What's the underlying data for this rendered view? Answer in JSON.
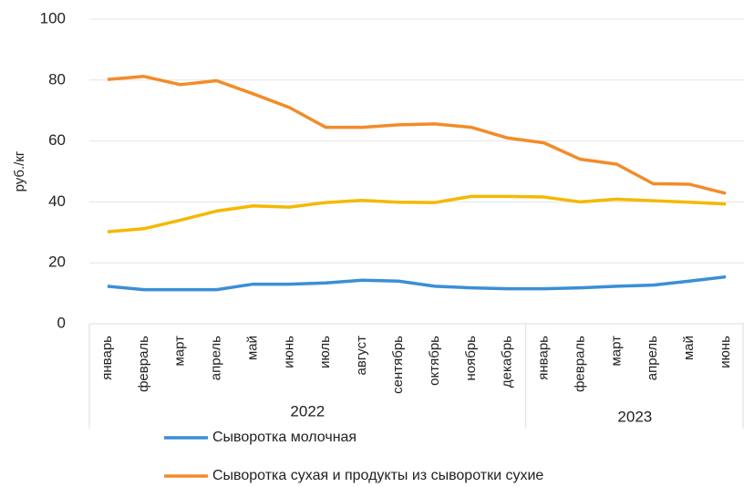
{
  "chart_data": {
    "type": "line",
    "y_label": "руб./кг",
    "category_groups": [
      {
        "label": "2022",
        "categories": [
          "январь",
          "февраль",
          "март",
          "апрель",
          "май",
          "июнь",
          "июль",
          "август",
          "сентябрь",
          "октябрь",
          "ноябрь",
          "декабрь"
        ]
      },
      {
        "label": "2023",
        "categories": [
          "январь",
          "февраль",
          "март",
          "апрель",
          "май",
          "июнь"
        ]
      }
    ],
    "series": [
      {
        "name": "Сыворотка молочная",
        "color": "#3a8fd6",
        "values": [
          12.3,
          11.2,
          11.2,
          11.2,
          13,
          13,
          13.4,
          14.3,
          14,
          12.3,
          11.8,
          11.5,
          11.5,
          11.8,
          12.3,
          12.7,
          14,
          15.4
        ]
      },
      {
        "name": "Сыворотка сухая и продукты из сыворотки сухие",
        "color": "#f28c28",
        "values": [
          80.2,
          81.2,
          78.5,
          79.8,
          75.5,
          71,
          64.5,
          64.5,
          65.3,
          65.6,
          64.5,
          61,
          59.4,
          54,
          52.4,
          46,
          45.8,
          42.8
        ]
      },
      {
        "color": "#f5b800",
        "values": [
          30.2,
          31.2,
          34,
          37,
          38.7,
          38.3,
          39.8,
          40.5,
          39.9,
          39.8,
          41.8,
          41.8,
          41.6,
          40,
          40.9,
          40.4,
          39.9,
          39.3
        ]
      }
    ],
    "ylim": [
      0,
      100
    ],
    "yticks": [
      0,
      20,
      40,
      60,
      80,
      100
    ],
    "grid": true,
    "legend": "bottom"
  }
}
